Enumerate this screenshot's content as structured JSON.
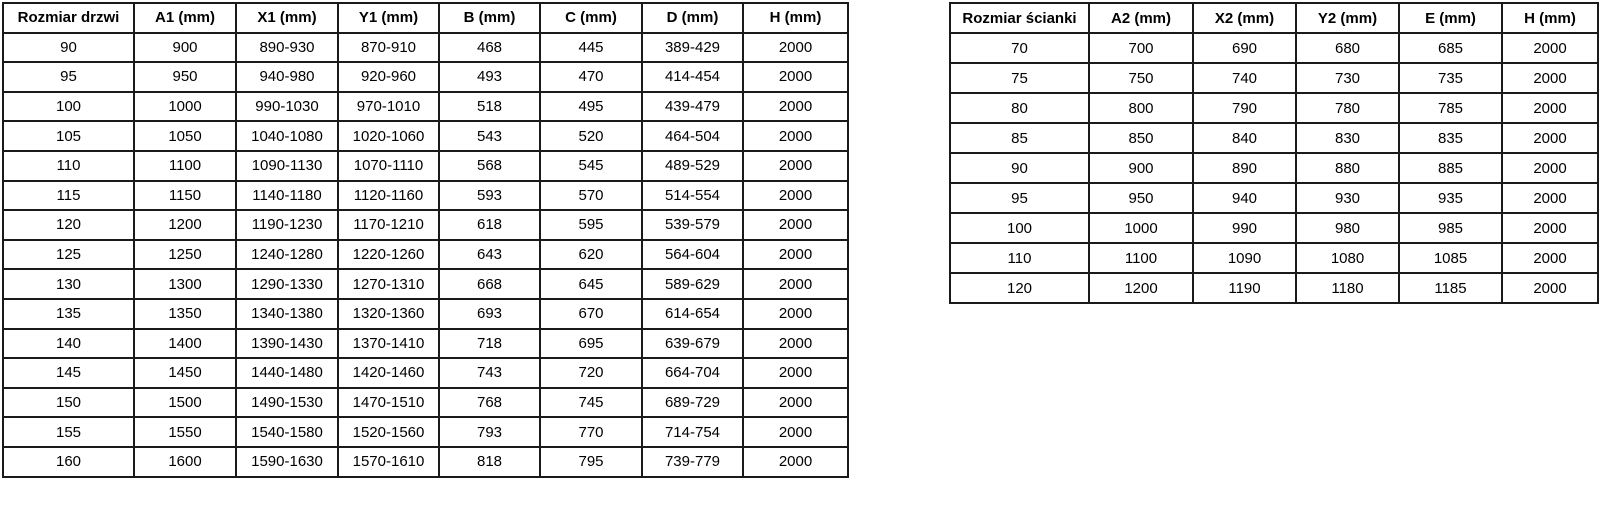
{
  "tables": {
    "doors": {
      "headers": [
        "Rozmiar drzwi",
        "A1 (mm)",
        "X1 (mm)",
        "Y1 (mm)",
        "B (mm)",
        "C (mm)",
        "D (mm)",
        "H (mm)"
      ],
      "rows": [
        [
          "90",
          "900",
          "890-930",
          "870-910",
          "468",
          "445",
          "389-429",
          "2000"
        ],
        [
          "95",
          "950",
          "940-980",
          "920-960",
          "493",
          "470",
          "414-454",
          "2000"
        ],
        [
          "100",
          "1000",
          "990-1030",
          "970-1010",
          "518",
          "495",
          "439-479",
          "2000"
        ],
        [
          "105",
          "1050",
          "1040-1080",
          "1020-1060",
          "543",
          "520",
          "464-504",
          "2000"
        ],
        [
          "110",
          "1100",
          "1090-1130",
          "1070-1110",
          "568",
          "545",
          "489-529",
          "2000"
        ],
        [
          "115",
          "1150",
          "1140-1180",
          "1120-1160",
          "593",
          "570",
          "514-554",
          "2000"
        ],
        [
          "120",
          "1200",
          "1190-1230",
          "1170-1210",
          "618",
          "595",
          "539-579",
          "2000"
        ],
        [
          "125",
          "1250",
          "1240-1280",
          "1220-1260",
          "643",
          "620",
          "564-604",
          "2000"
        ],
        [
          "130",
          "1300",
          "1290-1330",
          "1270-1310",
          "668",
          "645",
          "589-629",
          "2000"
        ],
        [
          "135",
          "1350",
          "1340-1380",
          "1320-1360",
          "693",
          "670",
          "614-654",
          "2000"
        ],
        [
          "140",
          "1400",
          "1390-1430",
          "1370-1410",
          "718",
          "695",
          "639-679",
          "2000"
        ],
        [
          "145",
          "1450",
          "1440-1480",
          "1420-1460",
          "743",
          "720",
          "664-704",
          "2000"
        ],
        [
          "150",
          "1500",
          "1490-1530",
          "1470-1510",
          "768",
          "745",
          "689-729",
          "2000"
        ],
        [
          "155",
          "1550",
          "1540-1580",
          "1520-1560",
          "793",
          "770",
          "714-754",
          "2000"
        ],
        [
          "160",
          "1600",
          "1590-1630",
          "1570-1610",
          "818",
          "795",
          "739-779",
          "2000"
        ]
      ]
    },
    "walls": {
      "headers": [
        "Rozmiar ścianki",
        "A2 (mm)",
        "X2 (mm)",
        "Y2 (mm)",
        "E (mm)",
        "H (mm)"
      ],
      "rows": [
        [
          "70",
          "700",
          "690",
          "680",
          "685",
          "2000"
        ],
        [
          "75",
          "750",
          "740",
          "730",
          "735",
          "2000"
        ],
        [
          "80",
          "800",
          "790",
          "780",
          "785",
          "2000"
        ],
        [
          "85",
          "850",
          "840",
          "830",
          "835",
          "2000"
        ],
        [
          "90",
          "900",
          "890",
          "880",
          "885",
          "2000"
        ],
        [
          "95",
          "950",
          "940",
          "930",
          "935",
          "2000"
        ],
        [
          "100",
          "1000",
          "990",
          "980",
          "985",
          "2000"
        ],
        [
          "110",
          "1100",
          "1090",
          "1080",
          "1085",
          "2000"
        ],
        [
          "120",
          "1200",
          "1190",
          "1180",
          "1185",
          "2000"
        ]
      ]
    }
  }
}
